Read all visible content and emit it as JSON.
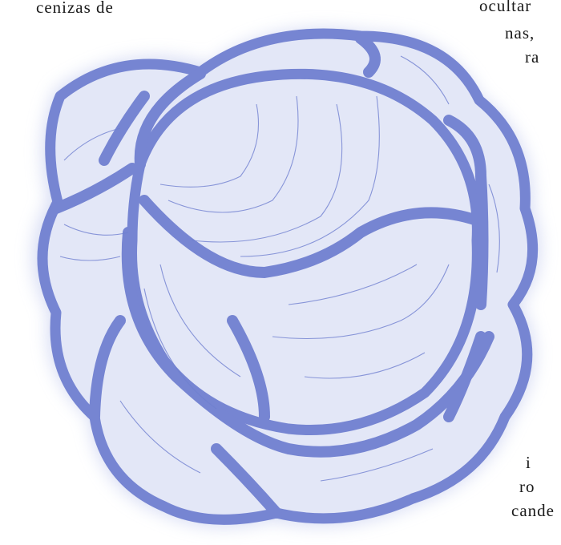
{
  "text_fragments": [
    "cenizas de",
    "ocultar",
    "nas,",
    "ra",
    "i",
    "ro",
    "cande"
  ]
}
